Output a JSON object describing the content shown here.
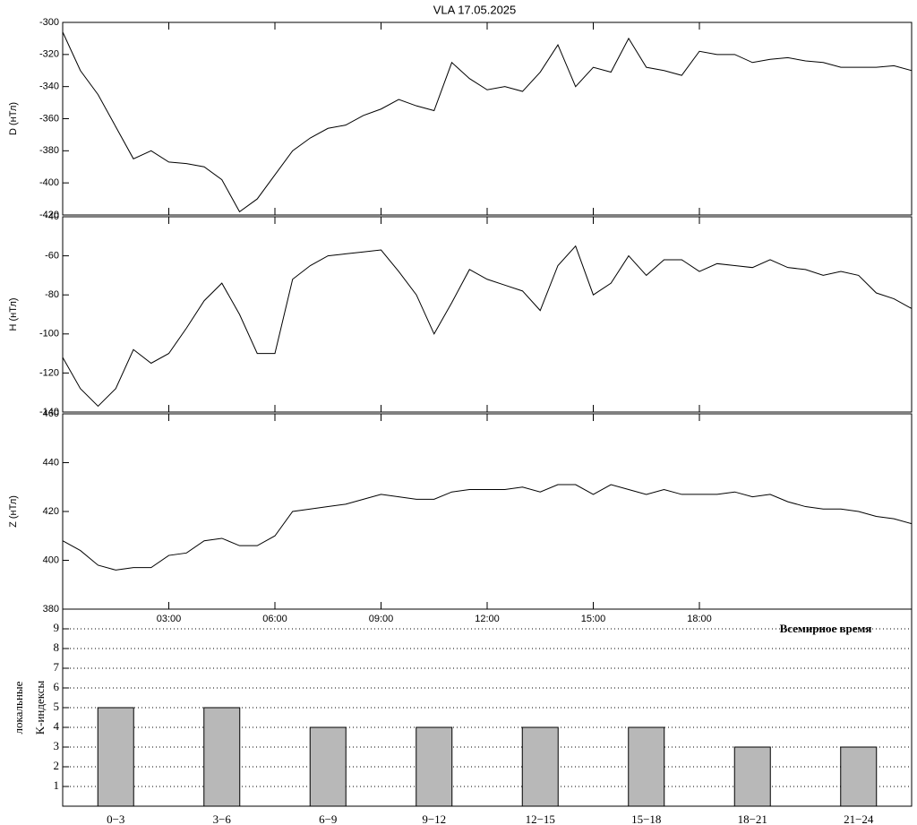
{
  "title": "VLA   17.05.2025",
  "xlabel": "Всемирное время",
  "chart_data": [
    {
      "type": "line",
      "ylabel": "D (нТл)",
      "color": "#000000",
      "xlim": [
        0,
        24
      ],
      "ylim": [
        -420,
        -300
      ],
      "yticks": [
        -300,
        -320,
        -340,
        -360,
        -380,
        -400,
        -420
      ],
      "x": [
        0,
        0.5,
        1,
        1.5,
        2,
        2.5,
        3,
        3.5,
        4,
        4.5,
        5,
        5.5,
        6,
        6.5,
        7,
        7.5,
        8,
        8.5,
        9,
        9.5,
        10,
        10.5,
        11,
        11.5,
        12,
        12.5,
        13,
        13.5,
        14,
        14.5,
        15,
        15.5,
        16,
        16.5,
        17,
        17.5,
        18,
        18.5,
        19,
        19.5,
        20,
        20.5,
        21,
        21.5,
        22,
        22.5,
        23,
        23.5,
        24
      ],
      "values": [
        -306,
        -330,
        -345,
        -365,
        -385,
        -380,
        -387,
        -388,
        -390,
        -398,
        -418,
        -410,
        -395,
        -380,
        -372,
        -366,
        -364,
        -358,
        -354,
        -348,
        -352,
        -355,
        -325,
        -335,
        -342,
        -340,
        -343,
        -331,
        -314,
        -340,
        -328,
        -331,
        -310,
        -328,
        -330,
        -333,
        -318,
        -320,
        -320,
        -325,
        -323,
        -322,
        -324,
        -325,
        -328,
        -328,
        -328,
        -327,
        -330
      ]
    },
    {
      "type": "line",
      "ylabel": "H (нТл)",
      "color": "#000000",
      "xlim": [
        0,
        24
      ],
      "ylim": [
        -140,
        -40
      ],
      "yticks": [
        -40,
        -60,
        -80,
        -100,
        -120,
        -140
      ],
      "x": [
        0,
        0.5,
        1,
        1.5,
        2,
        2.5,
        3,
        3.5,
        4,
        4.5,
        5,
        5.5,
        6,
        6.5,
        7,
        7.5,
        8,
        8.5,
        9,
        9.5,
        10,
        10.5,
        11,
        11.5,
        12,
        12.5,
        13,
        13.5,
        14,
        14.5,
        15,
        15.5,
        16,
        16.5,
        17,
        17.5,
        18,
        18.5,
        19,
        19.5,
        20,
        20.5,
        21,
        21.5,
        22,
        22.5,
        23,
        23.5,
        24
      ],
      "values": [
        -112,
        -128,
        -137,
        -128,
        -108,
        -115,
        -110,
        -97,
        -83,
        -74,
        -90,
        -110,
        -110,
        -72,
        -65,
        -60,
        -59,
        -58,
        -57,
        -68,
        -80,
        -100,
        -84,
        -67,
        -72,
        -75,
        -78,
        -88,
        -65,
        -55,
        -80,
        -74,
        -60,
        -70,
        -62,
        -62,
        -68,
        -64,
        -65,
        -66,
        -62,
        -66,
        -67,
        -70,
        -68,
        -70,
        -79,
        -82,
        -87
      ]
    },
    {
      "type": "line",
      "ylabel": "Z (нТл)",
      "color": "#000000",
      "xlim": [
        0,
        24
      ],
      "ylim": [
        380,
        460
      ],
      "yticks": [
        380,
        400,
        420,
        440,
        460
      ],
      "xticks": [
        {
          "value": 3,
          "label": "03:00"
        },
        {
          "value": 6,
          "label": "06:00"
        },
        {
          "value": 9,
          "label": "09:00"
        },
        {
          "value": 12,
          "label": "12:00"
        },
        {
          "value": 15,
          "label": "15:00"
        },
        {
          "value": 18,
          "label": "18:00"
        }
      ],
      "x": [
        0,
        0.5,
        1,
        1.5,
        2,
        2.5,
        3,
        3.5,
        4,
        4.5,
        5,
        5.5,
        6,
        6.5,
        7,
        7.5,
        8,
        8.5,
        9,
        9.5,
        10,
        10.5,
        11,
        11.5,
        12,
        12.5,
        13,
        13.5,
        14,
        14.5,
        15,
        15.5,
        16,
        16.5,
        17,
        17.5,
        18,
        18.5,
        19,
        19.5,
        20,
        20.5,
        21,
        21.5,
        22,
        22.5,
        23,
        23.5,
        24
      ],
      "values": [
        408,
        404,
        398,
        396,
        397,
        397,
        402,
        403,
        408,
        409,
        406,
        406,
        410,
        420,
        421,
        422,
        423,
        425,
        427,
        426,
        425,
        425,
        428,
        429,
        429,
        429,
        430,
        428,
        431,
        431,
        427,
        431,
        429,
        427,
        429,
        427,
        427,
        427,
        428,
        426,
        427,
        424,
        422,
        421,
        421,
        420,
        418,
        417,
        415
      ]
    },
    {
      "type": "bar",
      "ylabel": [
        "локальные",
        "K-индексы"
      ],
      "color": "#b8b8b8",
      "categories": [
        "0−3",
        "3−6",
        "6−9",
        "9−12",
        "12−15",
        "15−18",
        "18−21",
        "21−24"
      ],
      "values": [
        5,
        5,
        4,
        4,
        4,
        4,
        3,
        3
      ],
      "ylim": [
        0,
        10
      ],
      "yticks": [
        1,
        2,
        3,
        4,
        5,
        6,
        7,
        8,
        9
      ],
      "grid": true
    }
  ]
}
